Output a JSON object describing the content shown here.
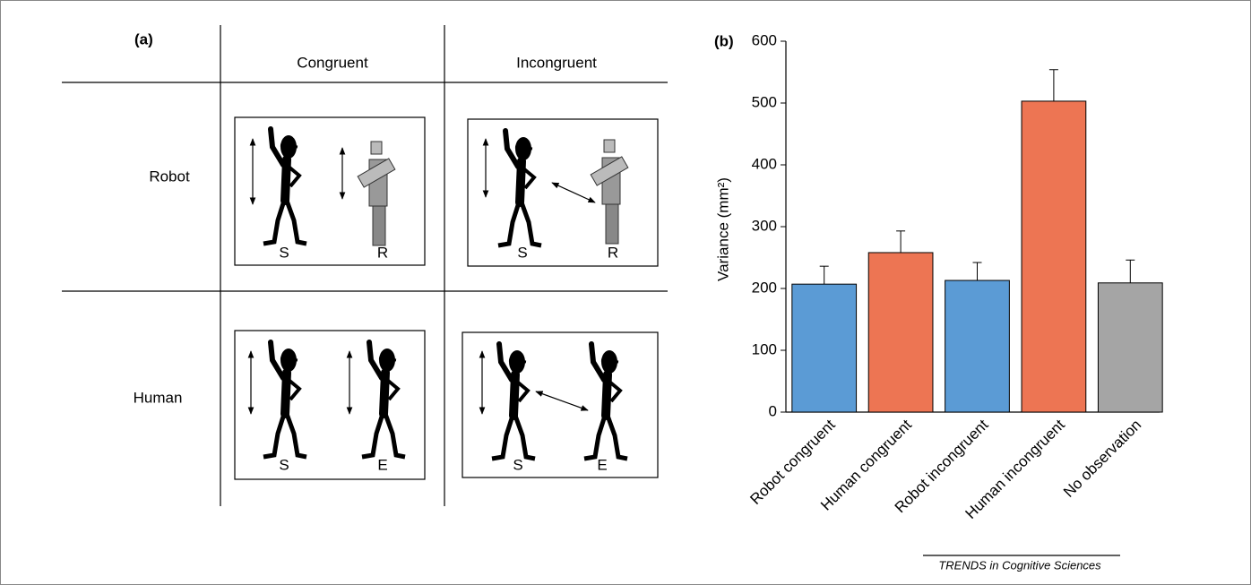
{
  "panel_a": {
    "label": "(a)",
    "columns": [
      "Congruent",
      "Incongruent"
    ],
    "rows": [
      "Robot",
      "Human"
    ],
    "cells": [
      [
        [
          "S",
          "R"
        ],
        [
          "S",
          "R"
        ]
      ],
      [
        [
          "S",
          "E"
        ],
        [
          "S",
          "E"
        ]
      ]
    ]
  },
  "chart_data": {
    "type": "bar",
    "panel_label": "(b)",
    "y_label": "Variance (mm²)",
    "categories": [
      "Robot congruent",
      "Human congruent",
      "Robot incongruent",
      "Human incongruent",
      "No observation"
    ],
    "values": [
      207,
      258,
      213,
      503,
      209
    ],
    "errors": [
      29,
      35,
      29,
      51,
      37
    ],
    "colors": [
      "#5b9bd5",
      "#ed7553",
      "#5b9bd5",
      "#ed7553",
      "#a5a5a5"
    ],
    "ylim": [
      0,
      600
    ],
    "yticks": [
      0,
      100,
      200,
      300,
      400,
      500,
      600
    ],
    "grid": false
  },
  "source": "TRENDS in Cognitive Sciences"
}
